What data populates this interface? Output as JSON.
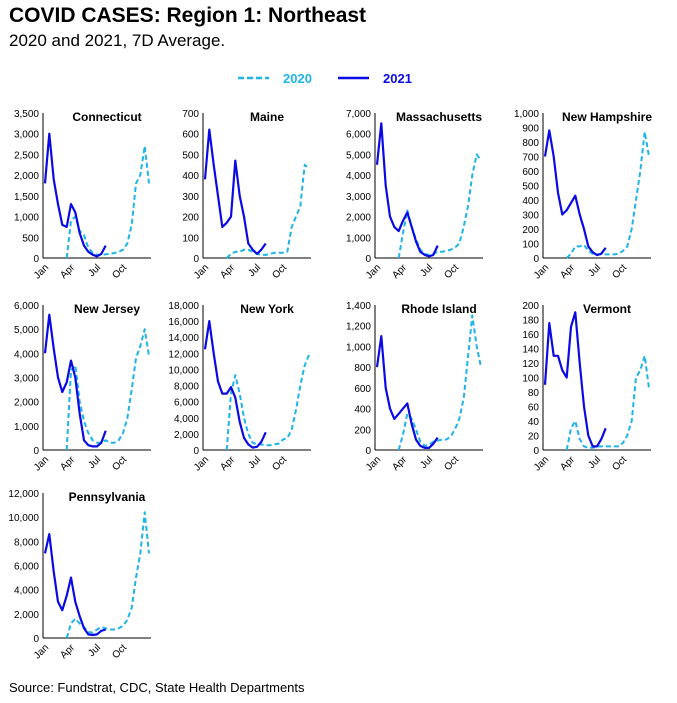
{
  "title": "COVID CASES: Region 1: Northeast",
  "subtitle": "2020 and 2021, 7D Average.",
  "source": "Source: Fundstrat, CDC, State Health Departments",
  "chart_data": {
    "type": "line",
    "legend": {
      "placement": "top",
      "entries": [
        "2020",
        "2021"
      ]
    },
    "series_styles": {
      "2020": {
        "color": "#1EB4EA",
        "dash": true
      },
      "2021": {
        "color": "#0A0AE6",
        "dash": false
      }
    },
    "x": [
      "Jan 1",
      "Jan 15",
      "Feb 1",
      "Feb 15",
      "Mar 1",
      "Mar 15",
      "Apr 1",
      "Apr 15",
      "May 1",
      "May 15",
      "Jun 1",
      "Jun 15",
      "Jul 1",
      "Jul 15",
      "Aug 1",
      "Aug 15",
      "Sep 1",
      "Sep 15",
      "Oct 1",
      "Oct 15",
      "Nov 1",
      "Nov 15",
      "Dec 1",
      "Dec 15",
      "Dec 31"
    ],
    "x_tick_labels": [
      "Jan",
      "Apr",
      "Jul",
      "Oct"
    ],
    "panels": [
      {
        "title": "Connecticut",
        "ylim": [
          0,
          3500
        ],
        "yticks": [
          "0",
          "500",
          "1,000",
          "1,500",
          "2,000",
          "2,500",
          "3,000",
          "3,500"
        ],
        "ytick_values": [
          0,
          500,
          1000,
          1500,
          2000,
          2500,
          3000,
          3500
        ],
        "series": [
          {
            "name": "2020",
            "values": [
              null,
              null,
              null,
              null,
              null,
              0,
              900,
              1000,
              650,
              550,
              250,
              120,
              80,
              70,
              90,
              100,
              120,
              150,
              200,
              350,
              800,
              1800,
              2000,
              2700,
              1800
            ]
          },
          {
            "name": "2021",
            "values": [
              1800,
              3000,
              1900,
              1300,
              800,
              750,
              1300,
              1100,
              600,
              300,
              150,
              80,
              40,
              100,
              300
            ]
          }
        ]
      },
      {
        "title": "Maine",
        "ylim": [
          0,
          700
        ],
        "yticks": [
          "0",
          "100",
          "200",
          "300",
          "400",
          "500",
          "600",
          "700"
        ],
        "ytick_values": [
          0,
          100,
          200,
          300,
          400,
          500,
          600,
          700
        ],
        "series": [
          {
            "name": "2020",
            "values": [
              null,
              null,
              null,
              null,
              null,
              0,
              20,
              30,
              30,
              40,
              40,
              30,
              20,
              15,
              15,
              20,
              25,
              25,
              25,
              30,
              150,
              200,
              250,
              450,
              430
            ]
          },
          {
            "name": "2021",
            "values": [
              380,
              620,
              450,
              300,
              150,
              170,
              200,
              470,
              300,
              200,
              70,
              40,
              20,
              40,
              70
            ]
          }
        ]
      },
      {
        "title": "Massachusetts",
        "ylim": [
          0,
          7000
        ],
        "yticks": [
          "0",
          "1,000",
          "2,000",
          "3,000",
          "4,000",
          "5,000",
          "6,000",
          "7,000"
        ],
        "ytick_values": [
          0,
          1000,
          2000,
          3000,
          4000,
          5000,
          6000,
          7000
        ],
        "series": [
          {
            "name": "2020",
            "values": [
              null,
              null,
              null,
              null,
              null,
              0,
              1200,
              2300,
              1500,
              900,
              400,
              200,
              150,
              200,
              300,
              300,
              350,
              400,
              500,
              700,
              1500,
              2500,
              4000,
              5000,
              4700
            ]
          },
          {
            "name": "2021",
            "values": [
              4500,
              6500,
              3500,
              2000,
              1500,
              1300,
              1800,
              2200,
              1500,
              800,
              300,
              150,
              80,
              150,
              600
            ]
          }
        ]
      },
      {
        "title": "New Hampshire",
        "ylim": [
          0,
          1000
        ],
        "yticks": [
          "0",
          "100",
          "200",
          "300",
          "400",
          "500",
          "600",
          "700",
          "800",
          "900",
          "1,000"
        ],
        "ytick_values": [
          0,
          100,
          200,
          300,
          400,
          500,
          600,
          700,
          800,
          900,
          1000
        ],
        "series": [
          {
            "name": "2020",
            "values": [
              null,
              null,
              null,
              null,
              null,
              0,
              30,
              80,
              80,
              90,
              50,
              30,
              25,
              25,
              25,
              25,
              25,
              30,
              50,
              80,
              200,
              400,
              600,
              870,
              700
            ]
          },
          {
            "name": "2021",
            "values": [
              700,
              880,
              700,
              450,
              300,
              330,
              380,
              430,
              300,
              200,
              80,
              40,
              20,
              30,
              70
            ]
          }
        ]
      },
      {
        "title": "New Jersey",
        "ylim": [
          0,
          6000
        ],
        "yticks": [
          "0",
          "1,000",
          "2,000",
          "3,000",
          "4,000",
          "5,000",
          "6,000"
        ],
        "ytick_values": [
          0,
          1000,
          2000,
          3000,
          4000,
          5000,
          6000
        ],
        "series": [
          {
            "name": "2020",
            "values": [
              null,
              null,
              null,
              null,
              null,
              0,
              3300,
              3500,
              2000,
              1200,
              700,
              400,
              300,
              300,
              400,
              300,
              300,
              400,
              700,
              1300,
              2500,
              3800,
              4300,
              5000,
              3900
            ]
          },
          {
            "name": "2021",
            "values": [
              4000,
              5600,
              4200,
              3000,
              2400,
              2800,
              3700,
              3000,
              1500,
              400,
              200,
              150,
              150,
              300,
              800
            ]
          }
        ]
      },
      {
        "title": "New York",
        "ylim": [
          0,
          18000
        ],
        "yticks": [
          "0",
          "2,000",
          "4,000",
          "6,000",
          "8,000",
          "10,000",
          "12,000",
          "14,000",
          "16,000",
          "18,000"
        ],
        "ytick_values": [
          0,
          2000,
          4000,
          6000,
          8000,
          10000,
          12000,
          14000,
          16000,
          18000
        ],
        "series": [
          {
            "name": "2020",
            "values": [
              null,
              null,
              null,
              null,
              null,
              0,
              7000,
              9300,
              7000,
              4000,
              2000,
              900,
              700,
              700,
              600,
              600,
              700,
              800,
              1300,
              1500,
              2500,
              5000,
              8000,
              10500,
              11800
            ]
          },
          {
            "name": "2021",
            "values": [
              12500,
              16000,
              12000,
              8500,
              7000,
              7000,
              7800,
              6500,
              3500,
              1500,
              700,
              300,
              400,
              1000,
              2200
            ]
          }
        ]
      },
      {
        "title": "Rhode Island",
        "ylim": [
          0,
          1400
        ],
        "yticks": [
          "0",
          "200",
          "400",
          "600",
          "800",
          "1,000",
          "1,200",
          "1,400"
        ],
        "ytick_values": [
          0,
          200,
          400,
          600,
          800,
          1000,
          1200,
          1400
        ],
        "series": [
          {
            "name": "2020",
            "values": [
              null,
              null,
              null,
              null,
              null,
              0,
              150,
              350,
              300,
              200,
              80,
              40,
              50,
              80,
              90,
              100,
              100,
              130,
              200,
              300,
              500,
              900,
              1300,
              1000,
              800
            ]
          },
          {
            "name": "2021",
            "values": [
              800,
              1100,
              600,
              400,
              300,
              350,
              400,
              450,
              250,
              100,
              40,
              20,
              20,
              60,
              120
            ]
          }
        ]
      },
      {
        "title": "Vermont",
        "ylim": [
          0,
          200
        ],
        "yticks": [
          "0",
          "20",
          "40",
          "60",
          "80",
          "100",
          "120",
          "140",
          "160",
          "180",
          "200"
        ],
        "ytick_values": [
          0,
          20,
          40,
          60,
          80,
          100,
          120,
          140,
          160,
          180,
          200
        ],
        "series": [
          {
            "name": "2020",
            "values": [
              null,
              null,
              null,
              null,
              null,
              0,
              30,
              40,
              15,
              5,
              3,
              3,
              5,
              5,
              5,
              5,
              5,
              5,
              10,
              20,
              40,
              100,
              110,
              130,
              85
            ]
          },
          {
            "name": "2021",
            "values": [
              90,
              175,
              130,
              130,
              110,
              100,
              170,
              190,
              120,
              60,
              20,
              5,
              5,
              15,
              30
            ]
          }
        ]
      },
      {
        "title": "Pennsylvania",
        "ylim": [
          0,
          12000
        ],
        "yticks": [
          "0",
          "2,000",
          "4,000",
          "6,000",
          "8,000",
          "10,000",
          "12,000"
        ],
        "ytick_values": [
          0,
          2000,
          4000,
          6000,
          8000,
          10000,
          12000
        ],
        "series": [
          {
            "name": "2020",
            "values": [
              null,
              null,
              null,
              null,
              null,
              0,
              1200,
              1600,
              1200,
              900,
              500,
              450,
              700,
              900,
              800,
              700,
              700,
              800,
              1000,
              1500,
              2500,
              5000,
              7000,
              10400,
              7000
            ]
          },
          {
            "name": "2021",
            "values": [
              7000,
              8600,
              5500,
              3000,
              2300,
              3500,
              5000,
              3000,
              1800,
              800,
              300,
              250,
              300,
              600,
              700
            ]
          }
        ]
      }
    ]
  }
}
